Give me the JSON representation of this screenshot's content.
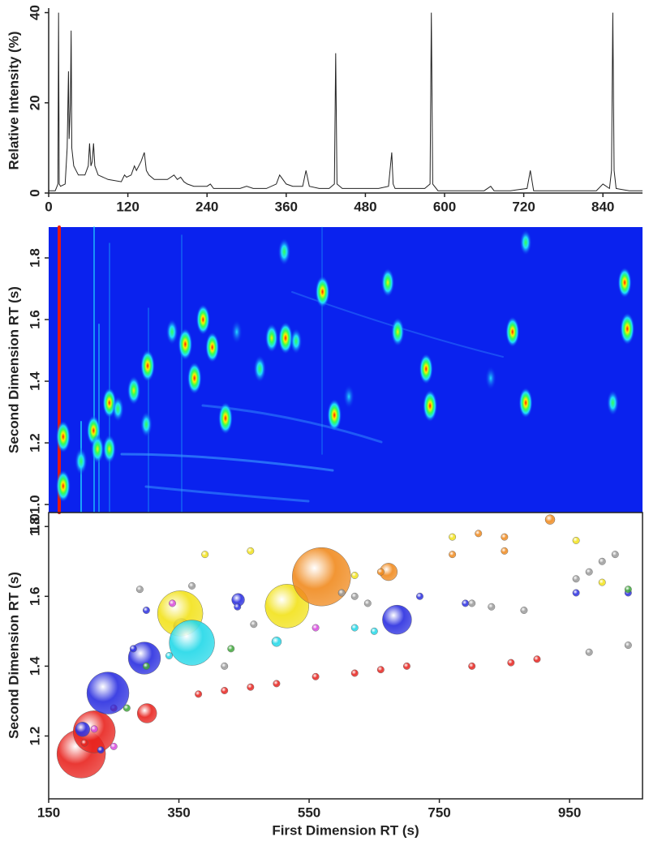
{
  "chart_data": [
    {
      "type": "line",
      "ylabel": "Relative Intensity (%)",
      "color": "#222222",
      "xlim": [
        0,
        900
      ],
      "xticks": [
        0,
        120,
        240,
        360,
        480,
        600,
        720,
        840
      ],
      "ylim": [
        0,
        41
      ],
      "yticks": [
        0,
        20,
        40
      ],
      "x": [
        0,
        10,
        14,
        15,
        16,
        18,
        25,
        28,
        30,
        31,
        33,
        34,
        35,
        38,
        45,
        55,
        60,
        62,
        64,
        66,
        68,
        70,
        75,
        90,
        110,
        115,
        118,
        125,
        130,
        133,
        140,
        145,
        148,
        152,
        160,
        180,
        190,
        195,
        200,
        205,
        210,
        220,
        240,
        245,
        250,
        270,
        290,
        300,
        310,
        330,
        345,
        350,
        355,
        360,
        370,
        385,
        390,
        395,
        410,
        425,
        433,
        435,
        437,
        445,
        470,
        500,
        515,
        520,
        522,
        525,
        540,
        570,
        578,
        580,
        582,
        590,
        620,
        660,
        670,
        675,
        700,
        725,
        730,
        735,
        760,
        830,
        840,
        850,
        853,
        855,
        857,
        860,
        880,
        900
      ],
      "values": [
        0.5,
        0.5,
        2,
        40,
        2,
        1.5,
        2,
        10,
        27,
        12,
        20,
        36,
        10,
        6,
        4,
        4,
        6,
        11,
        6,
        7,
        11,
        6,
        4,
        3,
        2.5,
        4,
        3.5,
        4,
        6,
        5,
        7,
        9,
        5,
        4,
        3,
        3,
        4,
        3,
        3.5,
        2.5,
        2,
        1.5,
        1.5,
        2,
        1,
        1,
        1,
        1.5,
        1,
        1,
        2,
        4,
        3,
        2,
        1.5,
        1.5,
        5,
        1.5,
        1,
        1,
        2,
        31,
        2,
        1,
        1,
        1,
        1.5,
        9,
        2,
        1,
        1,
        1,
        2,
        40,
        2,
        0.5,
        0.5,
        0.5,
        1.5,
        0.5,
        0.5,
        1,
        5,
        0.5,
        0.5,
        0.5,
        2,
        1,
        5,
        40,
        5,
        1,
        0.5,
        0.5
      ]
    },
    {
      "type": "heatmap",
      "ylabel": "Second Dimension RT (s)",
      "xlim": [
        0,
        900
      ],
      "ylim": [
        0.974,
        1.9
      ],
      "yticks": [
        {
          "value": 1.0,
          "label": "1.0"
        },
        1.2,
        1.4,
        1.6,
        1.8
      ],
      "x": [
        22,
        22,
        49,
        68,
        74,
        92,
        92,
        105,
        129,
        150,
        148,
        187,
        207,
        221,
        234,
        248,
        268,
        285,
        320,
        338,
        359,
        357,
        375,
        415,
        433,
        455,
        514,
        529,
        572,
        578,
        670,
        703,
        723,
        723,
        855,
        873,
        877
      ],
      "y": [
        1.22,
        1.06,
        1.14,
        1.24,
        1.18,
        1.18,
        1.33,
        1.31,
        1.37,
        1.45,
        1.26,
        1.56,
        1.52,
        1.41,
        1.6,
        1.51,
        1.28,
        1.56,
        1.44,
        1.54,
        1.54,
        1.82,
        1.53,
        1.69,
        1.29,
        1.35,
        1.72,
        1.56,
        1.44,
        1.32,
        1.41,
        1.56,
        1.33,
        1.85,
        1.33,
        1.72,
        1.57
      ],
      "values": [
        1,
        1,
        0.7,
        0.9,
        0.8,
        0.8,
        0.9,
        0.6,
        0.8,
        1,
        0.6,
        0.6,
        1,
        1,
        0.9,
        0.9,
        1,
        0.5,
        0.7,
        0.8,
        1,
        0.7,
        0.6,
        1,
        1,
        0.5,
        0.8,
        0.8,
        0.9,
        1,
        0.5,
        0.9,
        0.9,
        0.6,
        0.6,
        0.9,
        1
      ]
    },
    {
      "type": "bubble",
      "xlabel": "First Dimension RT (s)",
      "ylabel": "Second Dimension RT (s)",
      "top_label": "1.0",
      "xlim": [
        150,
        1062
      ],
      "xticks": [
        150,
        350,
        550,
        750,
        950
      ],
      "ylim": [
        1.02,
        1.84
      ],
      "yticks": [
        1.2,
        1.4,
        1.6,
        1.8
      ],
      "series": [
        {
          "color": "#e8231e",
          "x": [
            200,
            220,
            301,
            380,
            420,
            460,
            500,
            560,
            620,
            660,
            700,
            800,
            860,
            900,
            205,
            250
          ],
          "y": [
            1.149,
            1.212,
            1.265,
            1.32,
            1.33,
            1.34,
            1.35,
            1.37,
            1.38,
            1.39,
            1.4,
            1.4,
            1.41,
            1.42,
            1.18,
            1.28
          ],
          "sizes": [
            100,
            75,
            16,
            2,
            2,
            2,
            2,
            2,
            2,
            2,
            2,
            2,
            2,
            2,
            2,
            2
          ]
        },
        {
          "color": "#2a2ee0",
          "x": [
            241,
            297,
            354,
            685,
            441,
            202,
            300,
            440,
            720,
            790,
            960,
            1040,
            280,
            230
          ],
          "y": [
            1.323,
            1.423,
            1.514,
            1.533,
            1.59,
            1.219,
            1.56,
            1.57,
            1.6,
            1.58,
            1.61,
            1.61,
            1.45,
            1.16
          ],
          "sizes": [
            75,
            44,
            11,
            36,
            7,
            9,
            2,
            2,
            2,
            2,
            2,
            2,
            2,
            2
          ]
        },
        {
          "color": "#f2e21a",
          "x": [
            352,
            516,
            390,
            460,
            620,
            770,
            960,
            1000
          ],
          "y": [
            1.551,
            1.572,
            1.72,
            1.73,
            1.66,
            1.77,
            1.76,
            1.64
          ],
          "sizes": [
            87,
            81,
            2,
            2,
            2,
            2,
            2,
            2
          ]
        },
        {
          "color": "#22d8e8",
          "x": [
            370,
            335,
            500,
            620,
            650
          ],
          "y": [
            1.467,
            1.43,
            1.47,
            1.51,
            1.5
          ],
          "sizes": [
            87,
            2,
            4,
            2,
            2
          ]
        },
        {
          "color": "#f08a1e",
          "x": [
            569,
            672,
            920,
            770,
            810,
            850,
            850,
            660
          ],
          "y": [
            1.656,
            1.67,
            1.82,
            1.72,
            1.78,
            1.73,
            1.77,
            1.67
          ],
          "sizes": [
            144,
            13,
            4,
            2,
            2,
            2,
            2,
            2
          ]
        },
        {
          "color": "#9a9a9a",
          "x": [
            290,
            370,
            465,
            600,
            620,
            640,
            800,
            830,
            880,
            960,
            980,
            1000,
            1020,
            1040,
            980,
            420
          ],
          "y": [
            1.62,
            1.63,
            1.52,
            1.61,
            1.6,
            1.58,
            1.58,
            1.57,
            1.56,
            1.65,
            1.67,
            1.7,
            1.72,
            1.46,
            1.44,
            1.4
          ],
          "sizes": [
            2,
            2,
            2,
            2,
            2,
            2,
            2,
            2,
            2,
            2,
            2,
            2,
            2,
            2,
            2,
            2
          ]
        },
        {
          "color": "#3fa83a",
          "x": [
            270,
            300,
            430,
            1040
          ],
          "y": [
            1.28,
            1.4,
            1.45,
            1.62
          ],
          "sizes": [
            2,
            2,
            2,
            2
          ]
        },
        {
          "color": "#d84adf",
          "x": [
            220,
            250,
            340,
            560
          ],
          "y": [
            1.22,
            1.17,
            1.58,
            1.51
          ],
          "sizes": [
            2,
            2,
            2,
            2
          ]
        }
      ]
    }
  ]
}
